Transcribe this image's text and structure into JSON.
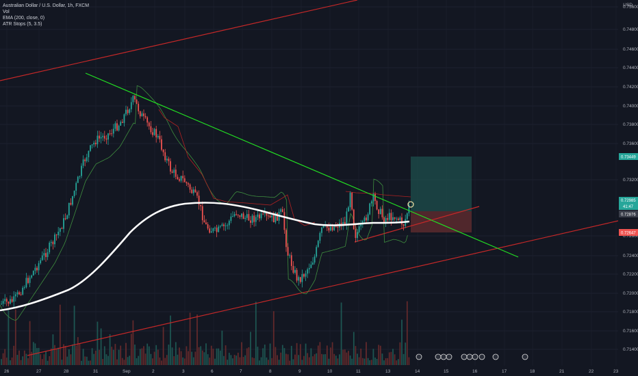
{
  "legend": {
    "symbol": "Australian Dollar / U.S. Dollar, 1h, FXCM",
    "vol": "Vol",
    "ema": "EMA (200, close, 0)",
    "atr": "ATR Stops (5, 3.5)"
  },
  "currency": "USD",
  "y_axis": {
    "labels": [
      "0.75600",
      "0.74800",
      "0.74600",
      "0.74400",
      "0.74200",
      "0.74000",
      "0.73800",
      "0.73600",
      "0.73200",
      "0.72600",
      "0.72400",
      "0.72200",
      "0.72000",
      "0.71800",
      "0.71600",
      "0.71400"
    ]
  },
  "price_badges": {
    "target": "0.73449",
    "current": "0.72985",
    "countdown": "41:47",
    "ema": "0.72876",
    "stop": "0.72647"
  },
  "x_axis": {
    "labels": [
      "26",
      "27",
      "28",
      "31",
      "Sep",
      "2",
      "3",
      "6",
      "7",
      "8",
      "9",
      "10",
      "11",
      "13",
      "14",
      "15",
      "16",
      "17",
      "18",
      "21",
      "22",
      "23",
      "21:"
    ]
  },
  "colors": {
    "background": "#131722",
    "up": "#26a69a",
    "down": "#ef5350",
    "ema": "#ffffff",
    "atr": "#b22222",
    "downtrend": "#22dd22",
    "channel": "#c62828",
    "target_zone": "#1e5a57",
    "stop_zone": "#6b2a2e"
  }
}
